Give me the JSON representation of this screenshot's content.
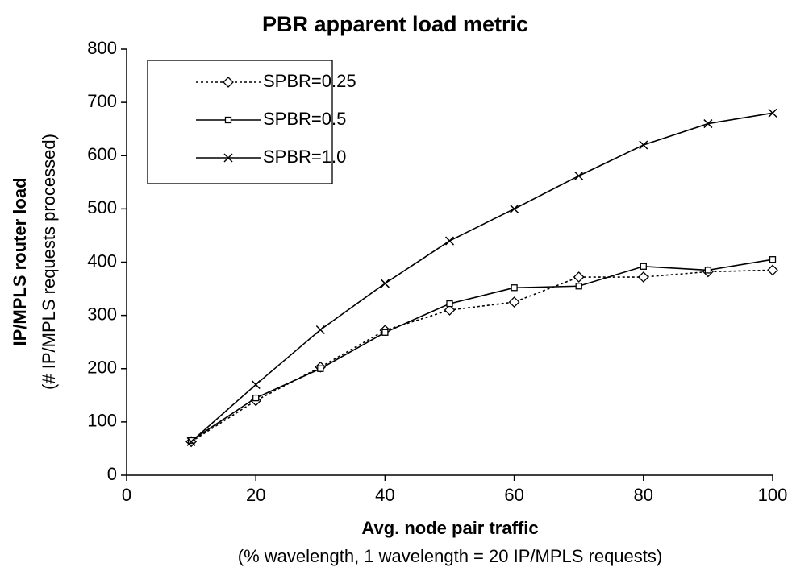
{
  "chart_data": {
    "type": "line",
    "title": "PBR apparent load metric",
    "x_label": "Avg. node pair traffic",
    "x_sublabel": "(% wavelength, 1 wavelength = 20 IP/MPLS requests)",
    "y_label": "IP/MPLS router load",
    "y_sublabel": "(# IP/MPLS requests processed)",
    "x": [
      10,
      20,
      30,
      40,
      50,
      60,
      70,
      80,
      90,
      100
    ],
    "series": [
      {
        "name": "SPBR=0.25",
        "color": "#000000",
        "marker": "diamond",
        "dash": "dotted",
        "values": [
          63,
          140,
          203,
          272,
          310,
          325,
          372,
          372,
          382,
          385
        ]
      },
      {
        "name": "SPBR=0.5",
        "color": "#000000",
        "marker": "square",
        "dash": "solid",
        "values": [
          65,
          145,
          200,
          268,
          322,
          352,
          355,
          392,
          385,
          405
        ]
      },
      {
        "name": "SPBR=1.0",
        "color": "#000000",
        "marker": "x",
        "dash": "solid",
        "values": [
          63,
          170,
          273,
          360,
          440,
          500,
          562,
          620,
          660,
          680
        ]
      }
    ],
    "xlim": [
      0,
      100
    ],
    "xticks": [
      0,
      20,
      40,
      60,
      80,
      100
    ],
    "ylim": [
      0,
      800
    ],
    "yticks": [
      0,
      100,
      200,
      300,
      400,
      500,
      600,
      700,
      800
    ],
    "grid": false,
    "legend": "upper left"
  }
}
